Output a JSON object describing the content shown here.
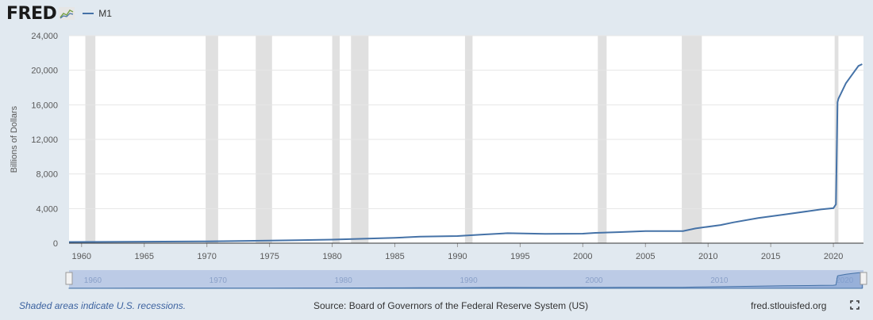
{
  "header": {
    "logo_text": "FRED",
    "logo_graph_icon": "line-chart-icon",
    "legend_label": "M1"
  },
  "colors": {
    "series": "#4572a7",
    "recession": "#e0e0e0",
    "background": "#e1e9f0",
    "plot_background": "#ffffff",
    "navigator_fill": "#bccbe6",
    "link": "#3d63a0"
  },
  "chart_data": {
    "type": "line",
    "title": "",
    "xlabel": "",
    "ylabel": "Billions of Dollars",
    "xlim": [
      1959,
      2022.4
    ],
    "ylim": [
      0,
      24000
    ],
    "grid": true,
    "x_ticks": [
      "1960",
      "1965",
      "1970",
      "1975",
      "1980",
      "1985",
      "1990",
      "1995",
      "2000",
      "2005",
      "2010",
      "2015",
      "2020"
    ],
    "y_ticks": [
      "0",
      "4,000",
      "8,000",
      "12,000",
      "16,000",
      "20,000",
      "24,000"
    ],
    "recessions": [
      [
        1960.3,
        1961.1
      ],
      [
        1969.9,
        1970.9
      ],
      [
        1973.9,
        1975.2
      ],
      [
        1980.0,
        1980.6
      ],
      [
        1981.5,
        1982.9
      ],
      [
        1990.6,
        1991.2
      ],
      [
        2001.2,
        2001.9
      ],
      [
        2007.9,
        2009.5
      ],
      [
        2020.1,
        2020.4
      ]
    ],
    "series": [
      {
        "name": "M1",
        "x": [
          1959,
          1965,
          1970,
          1975,
          1980,
          1985,
          1987,
          1990,
          1992,
          1994,
          1997,
          2000,
          2001,
          2003,
          2005,
          2008,
          2009,
          2011,
          2012,
          2014,
          2016,
          2018,
          2019,
          2020.0,
          2020.2,
          2020.33,
          2020.4,
          2021,
          2021.5,
          2022,
          2022.3
        ],
        "y": [
          140,
          170,
          215,
          290,
          410,
          620,
          750,
          820,
          1000,
          1150,
          1070,
          1100,
          1190,
          1280,
          1390,
          1400,
          1700,
          2100,
          2400,
          2900,
          3300,
          3700,
          3900,
          4050,
          4500,
          16300,
          16700,
          18500,
          19500,
          20500,
          20700
        ]
      }
    ]
  },
  "navigator": {
    "labels": [
      "1960",
      "1970",
      "1980",
      "1990",
      "2000",
      "2010",
      "2020"
    ],
    "label_years": [
      1960,
      1970,
      1980,
      1990,
      2000,
      2010,
      2020
    ]
  },
  "footer": {
    "note": "Shaded areas indicate U.S. recessions.",
    "source": "Source: Board of Governors of the Federal Reserve System (US)",
    "site": "fred.stlouisfed.org"
  }
}
